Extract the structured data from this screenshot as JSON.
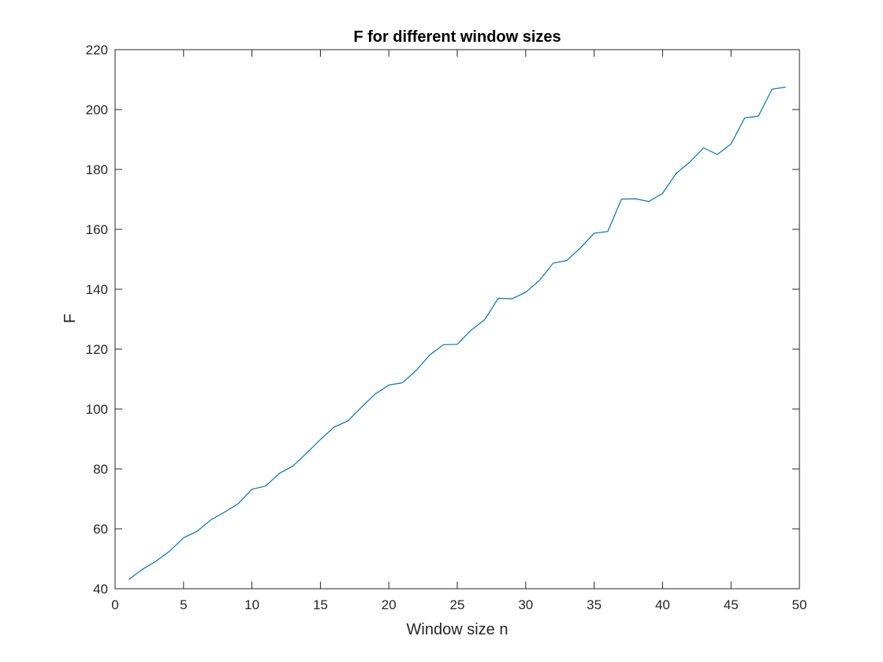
{
  "chart_data": {
    "type": "line",
    "title": "F for different window sizes",
    "xlabel": "Window size n",
    "ylabel": "F",
    "xlim": [
      0,
      50
    ],
    "ylim": [
      40,
      220
    ],
    "xticks": [
      0,
      5,
      10,
      15,
      20,
      25,
      30,
      35,
      40,
      45,
      50
    ],
    "yticks": [
      40,
      60,
      80,
      100,
      120,
      140,
      160,
      180,
      200,
      220
    ],
    "grid": false,
    "line_color": "#0072BD",
    "series": [
      {
        "x": [
          1,
          2,
          3,
          4,
          5,
          6,
          7,
          8,
          9,
          10,
          11,
          12,
          13,
          14,
          15,
          16,
          17,
          18,
          19,
          20,
          21,
          22,
          23,
          24,
          25,
          26,
          27,
          28,
          29,
          30,
          31,
          32,
          33,
          34,
          35,
          36,
          37,
          38,
          39,
          40,
          41,
          42,
          43,
          44,
          45,
          46,
          47,
          48,
          49
        ],
        "values": [
          43.1,
          46.5,
          49.2,
          52.6,
          57.0,
          59.2,
          63.0,
          65.6,
          68.4,
          73.2,
          74.3,
          78.5,
          81.0,
          85.3,
          89.8,
          94.0,
          96.0,
          100.6,
          105.0,
          108.0,
          108.8,
          112.9,
          118.1,
          121.5,
          121.6,
          126.3,
          129.8,
          137.0,
          136.8,
          139.0,
          142.9,
          148.7,
          149.6,
          153.8,
          158.7,
          159.3,
          170.1,
          170.2,
          169.3,
          172.0,
          178.7,
          182.5,
          187.2,
          185.0,
          188.5,
          197.2,
          197.8,
          206.8,
          207.5
        ]
      }
    ]
  }
}
